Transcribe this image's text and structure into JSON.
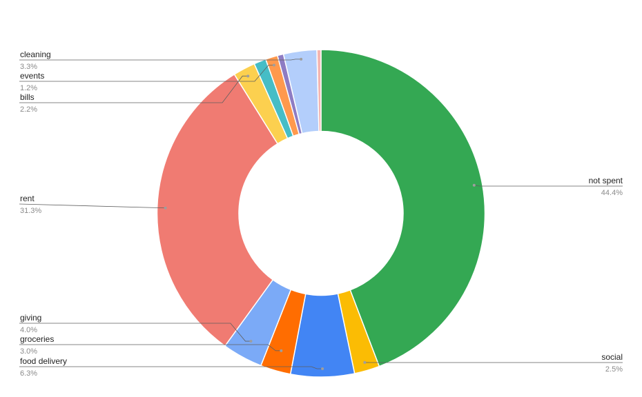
{
  "chart_data": {
    "type": "pie",
    "donut": true,
    "title": "",
    "legend": "labels beside the slices with leader lines",
    "slices": [
      {
        "label": "not spent",
        "value": 44.4,
        "pct_label": "44.4%",
        "color": "#34a853"
      },
      {
        "label": "social",
        "value": 2.5,
        "pct_label": "2.5%",
        "color": "#fbbc04"
      },
      {
        "label": "food delivery",
        "value": 6.3,
        "pct_label": "6.3%",
        "color": "#4285f4"
      },
      {
        "label": "groceries",
        "value": 3.0,
        "pct_label": "3.0%",
        "color": "#ff6d01"
      },
      {
        "label": "giving",
        "value": 4.0,
        "pct_label": "4.0%",
        "color": "#7baaf7"
      },
      {
        "label": "rent",
        "value": 31.3,
        "pct_label": "31.3%",
        "color": "#f07b72"
      },
      {
        "label": "bills",
        "value": 2.2,
        "pct_label": "2.2%",
        "color": "#fcd04f"
      },
      {
        "label": "",
        "value": 1.2,
        "pct_label": "",
        "color": "#46bdc6"
      },
      {
        "label": "events",
        "value": 1.2,
        "pct_label": "1.2%",
        "color": "#ff994d"
      },
      {
        "label": "",
        "value": 0.6,
        "pct_label": "",
        "color": "#8e7cc3"
      },
      {
        "label": "cleaning",
        "value": 3.3,
        "pct_label": "3.3%",
        "color": "#b3cefb"
      },
      {
        "label": "",
        "value": 0.4,
        "pct_label": "",
        "color": "#f4b5b0"
      }
    ]
  }
}
